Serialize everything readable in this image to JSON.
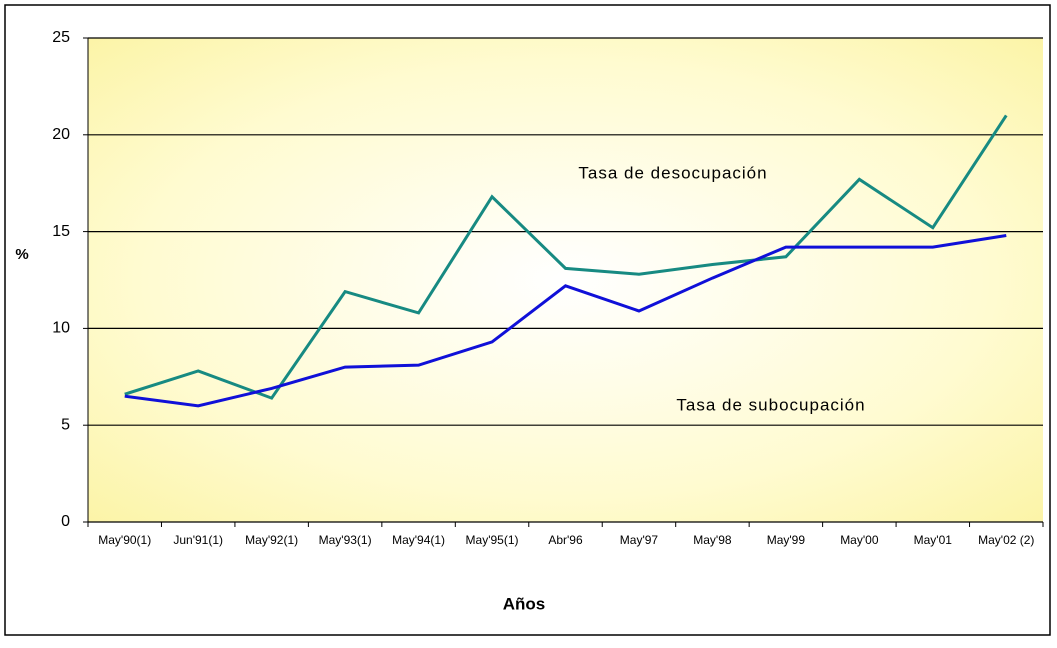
{
  "chart_data": {
    "type": "line",
    "xlabel": "Años",
    "ylabel": "%",
    "categories": [
      "May'90(1)",
      "Jun'91(1)",
      "May'92(1)",
      "May'93(1)",
      "May'94(1)",
      "May'95(1)",
      "Abr'96",
      "May'97",
      "May'98",
      "May'99",
      "May'00",
      "May'01",
      "May'02 (2)"
    ],
    "series": [
      {
        "name": "Tasa de desocupación",
        "color": "#178a82",
        "values": [
          6.6,
          7.8,
          6.4,
          11.9,
          10.8,
          16.8,
          13.1,
          12.8,
          13.3,
          13.7,
          17.7,
          15.2,
          21.0
        ]
      },
      {
        "name": "Tasa de subocupación",
        "color": "#1010d8",
        "values": [
          6.5,
          6.0,
          6.9,
          8.0,
          8.1,
          9.3,
          12.2,
          10.9,
          12.6,
          14.2,
          14.2,
          14.2,
          14.8
        ]
      }
    ],
    "ylim": [
      0,
      25
    ],
    "yticks": [
      0,
      5,
      10,
      15,
      20,
      25
    ],
    "grid": true
  }
}
